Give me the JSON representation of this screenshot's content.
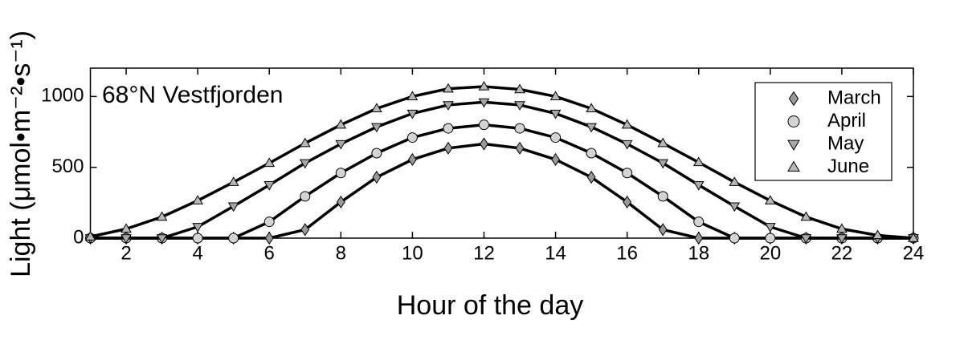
{
  "chart_data": {
    "type": "line",
    "annotation": "68°N Vestfjorden",
    "x_label": "Hour of the day",
    "y_label": "Light (μmol•m⁻²•s⁻¹)",
    "x": [
      1,
      2,
      3,
      4,
      5,
      6,
      7,
      8,
      9,
      10,
      11,
      12,
      13,
      14,
      15,
      16,
      17,
      18,
      19,
      20,
      21,
      22,
      23,
      24
    ],
    "line_color": "#000000",
    "series": [
      {
        "name": "March",
        "marker": "diamond",
        "color": "#999999",
        "values": [
          0,
          0,
          0,
          0,
          0,
          0,
          60,
          255,
          430,
          555,
          635,
          665,
          635,
          555,
          430,
          255,
          60,
          0,
          0,
          0,
          0,
          0,
          0,
          0
        ]
      },
      {
        "name": "April",
        "marker": "circle",
        "color": "#d4d4d4",
        "values": [
          0,
          0,
          0,
          0,
          0,
          115,
          295,
          460,
          600,
          710,
          775,
          800,
          775,
          710,
          600,
          460,
          295,
          115,
          0,
          0,
          0,
          0,
          0,
          0
        ]
      },
      {
        "name": "May",
        "marker": "triangle-down",
        "color": "#a8a8a8",
        "values": [
          0,
          0,
          0,
          80,
          225,
          375,
          530,
          665,
          785,
          880,
          940,
          960,
          940,
          880,
          785,
          665,
          530,
          375,
          225,
          80,
          0,
          0,
          0,
          0
        ]
      },
      {
        "name": "June",
        "marker": "triangle-up",
        "color": "#b8b8b8",
        "values": [
          10,
          65,
          150,
          265,
          395,
          530,
          670,
          800,
          915,
          1000,
          1055,
          1070,
          1050,
          1000,
          915,
          800,
          670,
          535,
          395,
          265,
          150,
          65,
          20,
          0
        ]
      }
    ],
    "xlim": [
      1,
      24
    ],
    "xticks": [
      2,
      4,
      6,
      8,
      10,
      12,
      14,
      16,
      18,
      20,
      22,
      24
    ],
    "ylim": [
      0,
      1200
    ],
    "yticks": [
      0,
      500,
      1000
    ],
    "legend": "upper right",
    "grid": false
  }
}
